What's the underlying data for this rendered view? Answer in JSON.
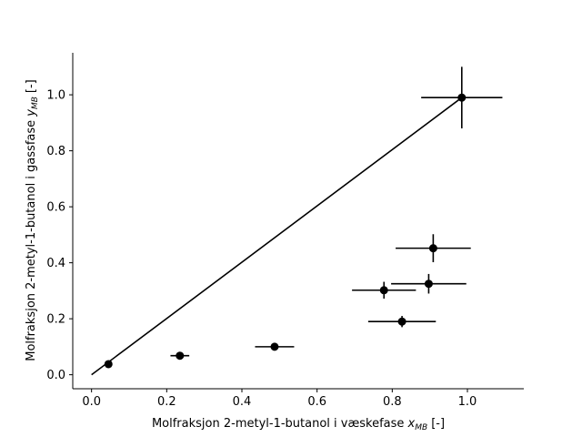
{
  "chart_data": {
    "type": "scatter",
    "xlabel": "Molfraksjon 2-metyl-1-butanol i væskefase",
    "xlabel_symbol": "x",
    "xlabel_subscript": "MB",
    "xlabel_unit": "[-]",
    "ylabel": "Molfraksjon 2-metyl-1-butanol i gassfase",
    "ylabel_symbol": "y",
    "ylabel_subscript": "MB",
    "ylabel_unit": "[-]",
    "xlim": [
      -0.05,
      1.15
    ],
    "ylim": [
      -0.05,
      1.15
    ],
    "xticks": [
      0.0,
      0.2,
      0.4,
      0.6,
      0.8,
      1.0
    ],
    "yticks": [
      0.0,
      0.2,
      0.4,
      0.6,
      0.8,
      1.0
    ],
    "xtick_labels": [
      "0.0",
      "0.2",
      "0.4",
      "0.6",
      "0.8",
      "1.0"
    ],
    "ytick_labels": [
      "0.0",
      "0.2",
      "0.4",
      "0.6",
      "0.8",
      "1.0"
    ],
    "grid": false,
    "color": "#000000",
    "reference_line": {
      "x": [
        0.0,
        0.985
      ],
      "y": [
        0.0,
        0.99
      ]
    },
    "points": [
      {
        "x": 0.045,
        "y": 0.038,
        "xerr": 0.0,
        "yerr": 0.0
      },
      {
        "x": 0.235,
        "y": 0.068,
        "xerr": 0.025,
        "yerr": 0.0
      },
      {
        "x": 0.487,
        "y": 0.1,
        "xerr": 0.052,
        "yerr": 0.0
      },
      {
        "x": 0.826,
        "y": 0.19,
        "xerr": 0.09,
        "yerr": 0.02
      },
      {
        "x": 0.778,
        "y": 0.302,
        "xerr": 0.085,
        "yerr": 0.03
      },
      {
        "x": 0.897,
        "y": 0.325,
        "xerr": 0.1,
        "yerr": 0.035
      },
      {
        "x": 0.909,
        "y": 0.452,
        "xerr": 0.1,
        "yerr": 0.05
      },
      {
        "x": 0.985,
        "y": 0.99,
        "xerr": 0.108,
        "yerr": 0.11
      }
    ]
  }
}
